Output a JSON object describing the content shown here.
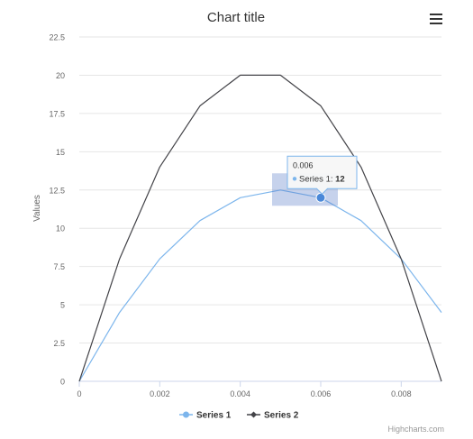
{
  "chart_data": {
    "type": "line",
    "title": "Chart title",
    "ylabel": "Values",
    "xlabel": "",
    "x": [
      0,
      0.001,
      0.002,
      0.003,
      0.004,
      0.005,
      0.006,
      0.007,
      0.008,
      0.009
    ],
    "xlim": [
      0,
      0.009
    ],
    "ylim": [
      0,
      22.5
    ],
    "x_ticks": [
      "0",
      "0.002",
      "0.004",
      "0.006",
      "0.008"
    ],
    "x_tick_values": [
      0,
      0.002,
      0.004,
      0.006,
      0.008
    ],
    "y_ticks": [
      "0",
      "2.5",
      "5",
      "7.5",
      "10",
      "12.5",
      "15",
      "17.5",
      "20",
      "22.5"
    ],
    "y_tick_values": [
      0,
      2.5,
      5,
      7.5,
      10,
      12.5,
      15,
      17.5,
      20,
      22.5
    ],
    "grid": true,
    "legend_position": "bottom-center",
    "series": [
      {
        "name": "Series 1",
        "color": "#7cb5ec",
        "values": [
          0,
          4.5,
          8,
          10.5,
          12,
          12.5,
          12,
          10.5,
          8,
          4.5
        ]
      },
      {
        "name": "Series 2",
        "color": "#434348",
        "values": [
          0,
          8,
          14,
          18,
          20,
          20,
          18,
          14,
          8,
          0
        ]
      }
    ],
    "tooltip": {
      "header": "0.006",
      "series_label": "Series 1: ",
      "value_text": "12",
      "series_index": 0,
      "point_index": 6
    },
    "credits": "Highcharts.com"
  },
  "menu": {
    "icon": "hamburger-menu-icon"
  }
}
